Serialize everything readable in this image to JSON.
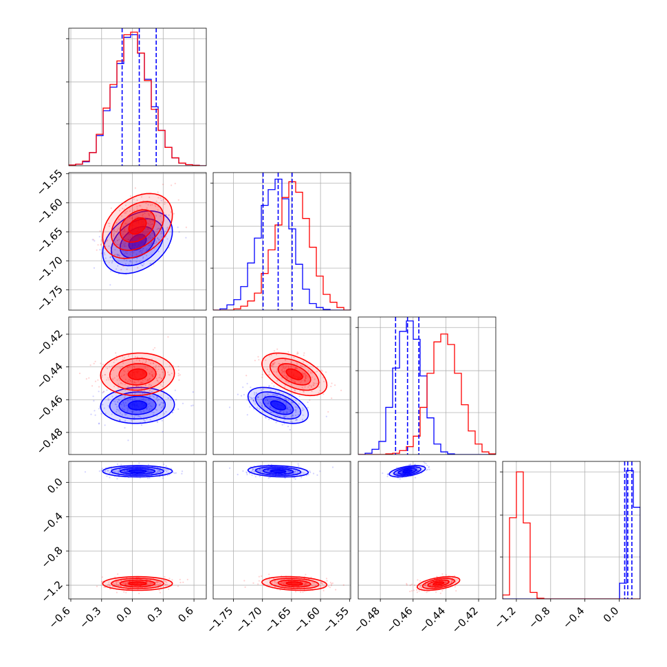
{
  "chart_data": {
    "type": "corner",
    "grid": true,
    "colors": {
      "series_a": "#0000ff",
      "series_b": "#ff0000"
    },
    "series": [
      {
        "color": "#0000ff"
      },
      {
        "color": "#ff0000"
      }
    ],
    "parameters": [
      {
        "range": [
          -0.62,
          0.72
        ],
        "ticks": [
          -0.6,
          -0.3,
          0.0,
          0.3,
          0.6
        ],
        "tick_labels": [
          "−0.6",
          "−0.3",
          "0.0",
          "0.3",
          "0.6"
        ]
      },
      {
        "range": [
          -1.785,
          -1.548
        ],
        "ticks": [
          -1.75,
          -1.7,
          -1.65,
          -1.6,
          -1.55
        ],
        "tick_labels": [
          "−1.75",
          "−1.70",
          "−1.65",
          "−1.60",
          "−1.55"
        ]
      },
      {
        "range": [
          -0.4935,
          -0.4095
        ],
        "ticks": [
          -0.48,
          -0.46,
          -0.44,
          -0.42
        ],
        "tick_labels": [
          "−0.48",
          "−0.46",
          "−0.44",
          "−0.42"
        ]
      },
      {
        "range": [
          -1.36,
          0.245
        ],
        "ticks": [
          -1.2,
          -0.8,
          -0.4,
          0.0
        ],
        "tick_labels": [
          "−1.2",
          "−0.8",
          "−0.4",
          "0.0"
        ]
      }
    ],
    "marginals": [
      {
        "bins": [
          -0.62,
          -0.553,
          -0.486,
          -0.419,
          -0.352,
          -0.285,
          -0.218,
          -0.151,
          -0.084,
          -0.017,
          0.05,
          0.117,
          0.184,
          0.251,
          0.318,
          0.385,
          0.452,
          0.519,
          0.586,
          0.653,
          0.72
        ],
        "ymax": 1.05,
        "counts": [
          [
            0.005,
            0.012,
            0.03,
            0.1,
            0.23,
            0.42,
            0.6,
            0.78,
            0.98,
            1.0,
            0.86,
            0.66,
            0.45,
            0.27,
            0.14,
            0.06,
            0.02,
            0.008,
            0.003,
            0.0
          ],
          [
            0.005,
            0.012,
            0.035,
            0.1,
            0.24,
            0.44,
            0.62,
            0.8,
            1.0,
            1.02,
            0.86,
            0.65,
            0.43,
            0.27,
            0.14,
            0.06,
            0.02,
            0.008,
            0.003,
            0.0
          ]
        ],
        "quantiles": [
          -0.1,
          0.067,
          0.232
        ]
      },
      {
        "bins": [
          -1.785,
          -1.7732,
          -1.7613,
          -1.7494,
          -1.7376,
          -1.7257,
          -1.7139,
          -1.702,
          -1.6902,
          -1.6783,
          -1.6665,
          -1.6546,
          -1.6428,
          -1.6309,
          -1.6191,
          -1.6072,
          -1.5954,
          -1.5835,
          -1.5717,
          -1.5598,
          -1.548
        ],
        "ymax": 1.05,
        "counts": [
          [
            0.0,
            0.01,
            0.04,
            0.08,
            0.18,
            0.36,
            0.55,
            0.8,
            0.92,
            1.0,
            0.85,
            0.62,
            0.35,
            0.16,
            0.05,
            0.02,
            0.005,
            0.0,
            0.0,
            0.0
          ],
          [
            0.0,
            0.0,
            0.0,
            0.01,
            0.03,
            0.07,
            0.13,
            0.28,
            0.46,
            0.65,
            0.86,
            0.98,
            0.9,
            0.7,
            0.48,
            0.26,
            0.12,
            0.06,
            0.02,
            0.0
          ]
        ],
        "quantiles": [
          -1.699,
          -1.673,
          -1.649
        ]
      },
      {
        "bins": [
          -0.4935,
          -0.4893,
          -0.4851,
          -0.4809,
          -0.4767,
          -0.4725,
          -0.4683,
          -0.4641,
          -0.4599,
          -0.4557,
          -0.4515,
          -0.4473,
          -0.4431,
          -0.4389,
          -0.4347,
          -0.4305,
          -0.4263,
          -0.4221,
          -0.4179,
          -0.4137,
          -0.4095
        ],
        "ymax": 1.05,
        "counts": [
          [
            0.0,
            0.01,
            0.04,
            0.1,
            0.36,
            0.66,
            0.94,
            1.02,
            0.88,
            0.6,
            0.28,
            0.08,
            0.02,
            0.005,
            0.0,
            0.0,
            0.0,
            0.0,
            0.0,
            0.0
          ],
          [
            0.0,
            0.0,
            0.0,
            0.0,
            0.005,
            0.01,
            0.03,
            0.06,
            0.14,
            0.36,
            0.62,
            0.86,
            0.92,
            0.84,
            0.62,
            0.38,
            0.18,
            0.08,
            0.02,
            0.005
          ]
        ],
        "quantiles": [
          -0.4707,
          -0.4634,
          -0.4565
        ]
      },
      {
        "bins": [
          -1.36,
          -1.2798,
          -1.1995,
          -1.1193,
          -1.039,
          -0.9588,
          -0.8785,
          -0.7983,
          -0.718,
          -0.6378,
          -0.5575,
          -0.4773,
          -0.397,
          -0.3168,
          -0.2365,
          -0.1563,
          -0.076,
          0.0043,
          0.0845,
          0.1648,
          0.245
        ],
        "ymax": 1.05,
        "counts": [
          [
            0.0,
            0.0,
            0.0,
            0.0,
            0.0,
            0.0,
            0.0,
            0.0,
            0.0,
            0.0,
            0.0,
            0.0,
            0.0,
            0.0,
            0.0,
            0.0,
            0.0,
            0.12,
            0.98,
            0.7
          ],
          [
            0.03,
            0.62,
            0.97,
            0.58,
            0.05,
            0.005,
            0.0,
            0.0,
            0.0,
            0.0,
            0.0,
            0.0,
            0.0,
            0.0,
            0.0,
            0.0,
            0.0,
            0.0,
            0.0,
            0.0
          ]
        ],
        "quantiles": [
          0.064,
          0.1,
          0.148
        ]
      }
    ],
    "joint": [
      {
        "row": 1,
        "col": 0,
        "means": [
          [
            0.05,
            -1.668
          ],
          [
            0.05,
            -1.64
          ]
        ],
        "sds": [
          [
            0.17,
            0.027
          ],
          [
            0.17,
            0.028
          ]
        ],
        "rho": [
          0.35,
          0.35
        ]
      },
      {
        "row": 2,
        "col": 0,
        "means": [
          [
            0.05,
            -0.4635
          ],
          [
            0.05,
            -0.4445
          ]
        ],
        "sds": [
          [
            0.18,
            0.0055
          ],
          [
            0.18,
            0.0065
          ]
        ],
        "rho": [
          0.05,
          0.05
        ]
      },
      {
        "row": 2,
        "col": 1,
        "means": [
          [
            -1.673,
            -0.4635
          ],
          [
            -1.645,
            -0.4445
          ]
        ],
        "sds": [
          [
            0.026,
            0.0055
          ],
          [
            0.028,
            0.0065
          ]
        ],
        "rho": [
          -0.5,
          -0.5
        ]
      },
      {
        "row": 3,
        "col": 0,
        "means": [
          [
            0.05,
            0.13
          ],
          [
            0.05,
            -1.18
          ]
        ],
        "sds": [
          [
            0.17,
            0.033
          ],
          [
            0.17,
            0.04
          ]
        ],
        "rho": [
          0.0,
          0.0
        ]
      },
      {
        "row": 3,
        "col": 1,
        "means": [
          [
            -1.673,
            0.13
          ],
          [
            -1.645,
            -1.18
          ]
        ],
        "sds": [
          [
            0.026,
            0.033
          ],
          [
            0.028,
            0.04
          ]
        ],
        "rho": [
          -0.2,
          -0.2
        ]
      },
      {
        "row": 3,
        "col": 2,
        "means": [
          [
            -0.4635,
            0.13
          ],
          [
            -0.4445,
            -1.18
          ]
        ],
        "sds": [
          [
            0.0055,
            0.033
          ],
          [
            0.0065,
            0.04
          ]
        ],
        "rho": [
          0.5,
          0.5
        ]
      }
    ]
  }
}
